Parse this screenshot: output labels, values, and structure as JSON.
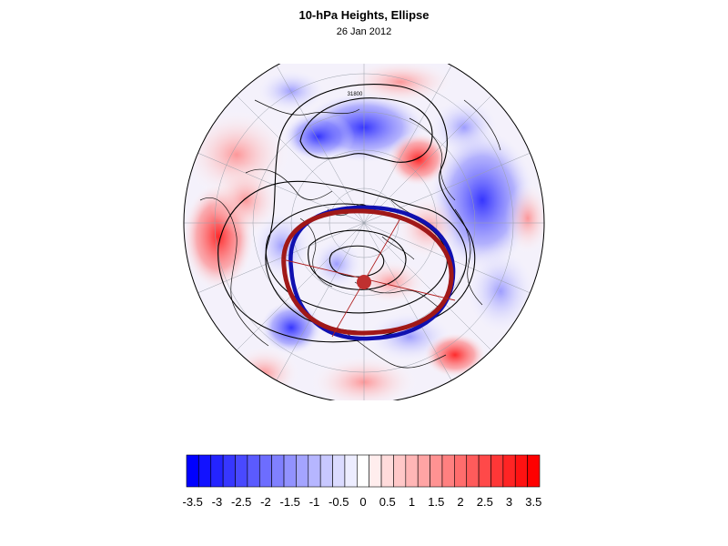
{
  "title": "10-hPa Heights, Ellipse",
  "subtitle": "26 Jan 2012",
  "map": {
    "projection": "polar stereographic (north polar)",
    "contour_label": "31800",
    "ellipse_colors": {
      "fit": "#1010b0",
      "reference": "#a01818"
    },
    "center_marker_color": "#c03030"
  },
  "colorbar": {
    "min": -3.5,
    "max": 3.5,
    "step": 0.25,
    "low_color": "#0000ff",
    "mid_color": "#ffffff",
    "high_color": "#ff0000",
    "tick_labels": [
      "-3.5",
      "-3",
      "-2.5",
      "-2",
      "-1.5",
      "-1",
      "-0.5",
      "0",
      "0.5",
      "1",
      "1.5",
      "2",
      "2.5",
      "3",
      "3.5"
    ]
  }
}
